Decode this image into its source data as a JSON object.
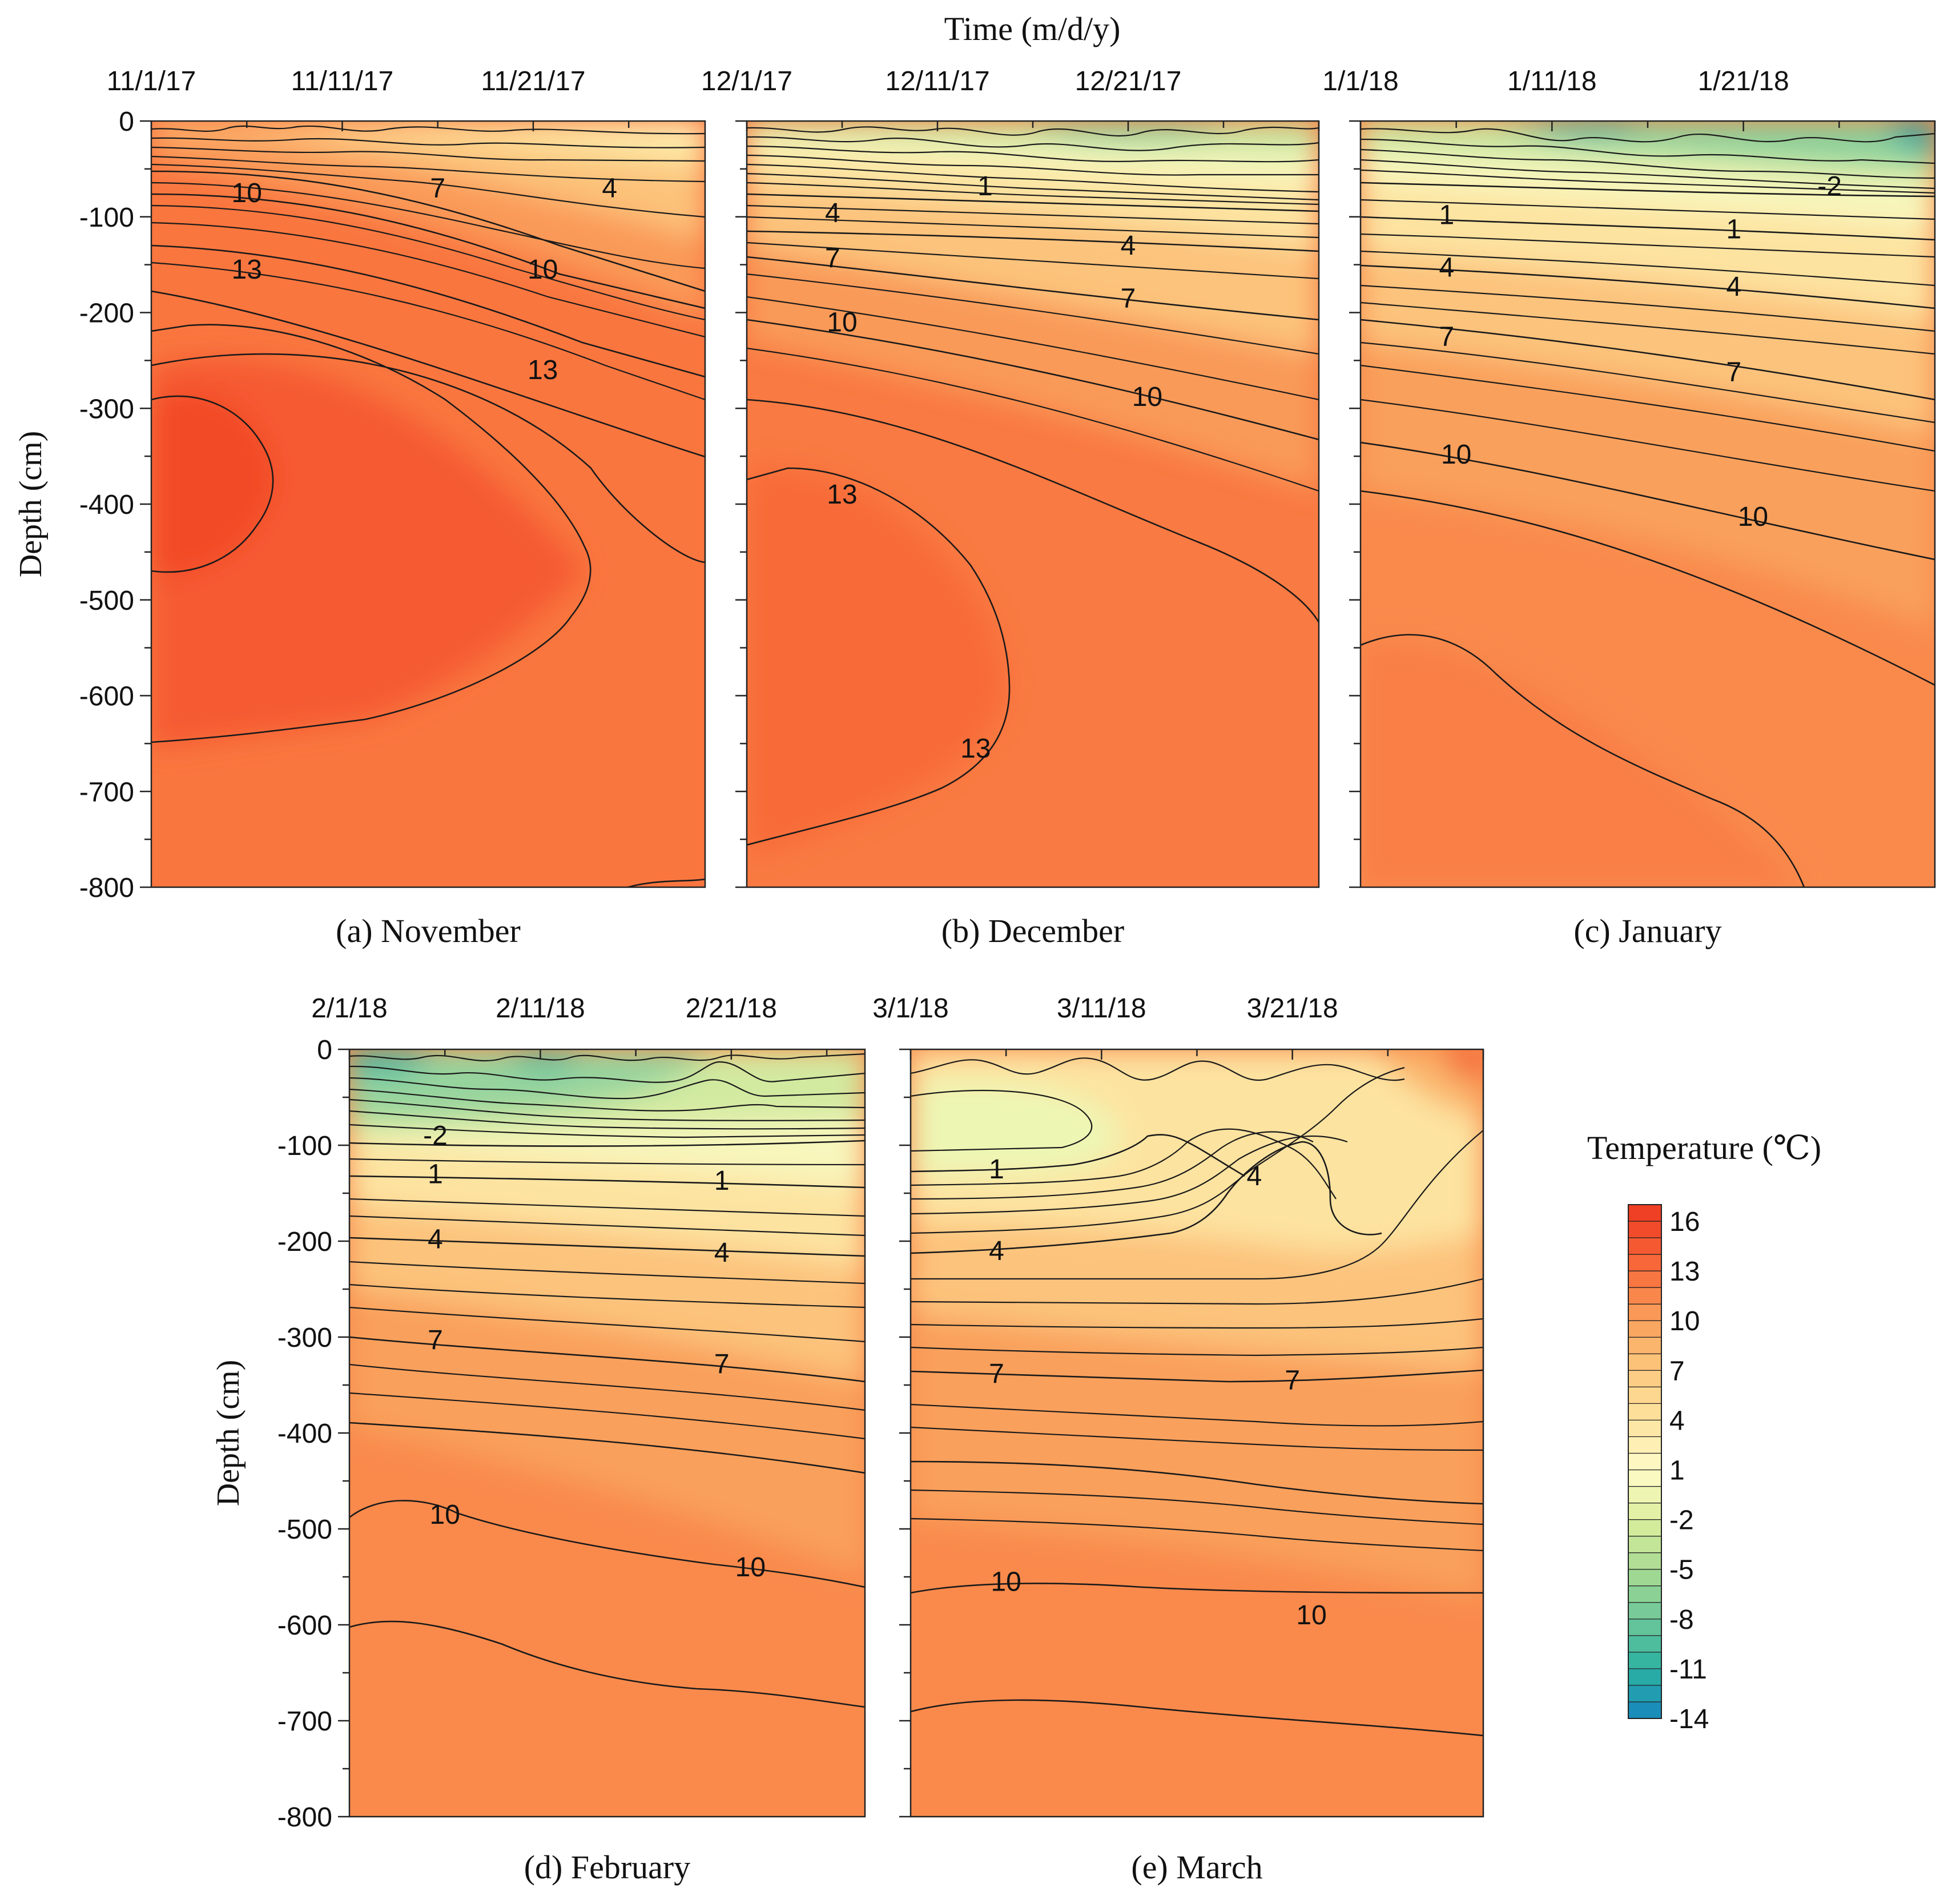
{
  "figure_title": "Time (m/d/y)",
  "chart_data": [
    {
      "id": "a",
      "type": "contour",
      "caption": "(a) November",
      "x_ticks": [
        "11/1/17",
        "11/11/17",
        "11/21/17"
      ],
      "x_range_days": [
        0,
        29
      ],
      "x_tick_days": [
        0,
        10,
        20
      ],
      "ylabel": "Depth (cm)",
      "y_ticks": [
        "0",
        "-100",
        "-200",
        "-300",
        "-400",
        "-500",
        "-600",
        "-700",
        "-800"
      ],
      "ylim": [
        -800,
        0
      ],
      "contour_labels": [
        {
          "text": "10",
          "day": 5,
          "depth": -75
        },
        {
          "text": "7",
          "day": 15,
          "depth": -70
        },
        {
          "text": "4",
          "day": 24,
          "depth": -70
        },
        {
          "text": "13",
          "day": 5,
          "depth": -155
        },
        {
          "text": "10",
          "day": 20.5,
          "depth": -155
        },
        {
          "text": "13",
          "day": 20.5,
          "depth": -260
        }
      ]
    },
    {
      "id": "b",
      "type": "contour",
      "caption": "(b) December",
      "x_ticks": [
        "12/1/17",
        "12/11/17",
        "12/21/17"
      ],
      "x_range_days": [
        0,
        30
      ],
      "x_tick_days": [
        0,
        10,
        20
      ],
      "contour_labels": [
        {
          "text": "1",
          "day": 12.5,
          "depth": -68
        },
        {
          "text": "4",
          "day": 4.5,
          "depth": -96
        },
        {
          "text": "4",
          "day": 20,
          "depth": -130
        },
        {
          "text": "7",
          "day": 4.5,
          "depth": -143
        },
        {
          "text": "7",
          "day": 20,
          "depth": -185
        },
        {
          "text": "10",
          "day": 5,
          "depth": -210
        },
        {
          "text": "10",
          "day": 21,
          "depth": -288
        },
        {
          "text": "13",
          "day": 5,
          "depth": -390
        },
        {
          "text": "13",
          "day": 12,
          "depth": -655
        }
      ]
    },
    {
      "id": "c",
      "type": "contour",
      "caption": "(c) January",
      "x_ticks": [
        "1/1/18",
        "1/11/18",
        "1/21/18"
      ],
      "x_range_days": [
        0,
        30
      ],
      "x_tick_days": [
        0,
        10,
        20
      ],
      "contour_labels": [
        {
          "text": "-2",
          "day": 24.5,
          "depth": -68
        },
        {
          "text": "1",
          "day": 4.5,
          "depth": -98
        },
        {
          "text": "1",
          "day": 19.5,
          "depth": -113
        },
        {
          "text": "4",
          "day": 4.5,
          "depth": -153
        },
        {
          "text": "4",
          "day": 19.5,
          "depth": -173
        },
        {
          "text": "7",
          "day": 4.5,
          "depth": -225
        },
        {
          "text": "7",
          "day": 19.5,
          "depth": -262
        },
        {
          "text": "10",
          "day": 5,
          "depth": -348
        },
        {
          "text": "10",
          "day": 20.5,
          "depth": -413
        }
      ]
    },
    {
      "id": "d",
      "type": "contour",
      "caption": "(d) February",
      "x_ticks": [
        "2/1/18",
        "2/11/18",
        "2/21/18"
      ],
      "x_range_days": [
        0,
        27
      ],
      "x_tick_days": [
        0,
        10,
        20
      ],
      "ylabel": "Depth (cm)",
      "y_ticks": [
        "0",
        "-100",
        "-200",
        "-300",
        "-400",
        "-500",
        "-600",
        "-700",
        "-800"
      ],
      "ylim": [
        -800,
        0
      ],
      "contour_labels": [
        {
          "text": "-2",
          "day": 4.5,
          "depth": -90
        },
        {
          "text": "1",
          "day": 4.5,
          "depth": -130
        },
        {
          "text": "1",
          "day": 19.5,
          "depth": -137
        },
        {
          "text": "4",
          "day": 4.5,
          "depth": -198
        },
        {
          "text": "4",
          "day": 19.5,
          "depth": -212
        },
        {
          "text": "7",
          "day": 4.5,
          "depth": -303
        },
        {
          "text": "7",
          "day": 19.5,
          "depth": -328
        },
        {
          "text": "10",
          "day": 5,
          "depth": -485
        },
        {
          "text": "10",
          "day": 21,
          "depth": -540
        }
      ]
    },
    {
      "id": "e",
      "type": "contour",
      "caption": "(e) March",
      "x_ticks": [
        "3/1/18",
        "3/11/18",
        "3/21/18"
      ],
      "x_range_days": [
        0,
        30
      ],
      "x_tick_days": [
        0,
        10,
        20
      ],
      "contour_labels": [
        {
          "text": "1",
          "day": 4.5,
          "depth": -125
        },
        {
          "text": "4",
          "day": 18,
          "depth": -132
        },
        {
          "text": "4",
          "day": 4.5,
          "depth": -210
        },
        {
          "text": "7",
          "day": 4.5,
          "depth": -338
        },
        {
          "text": "7",
          "day": 20,
          "depth": -345
        },
        {
          "text": "10",
          "day": 5,
          "depth": -555
        },
        {
          "text": "10",
          "day": 21,
          "depth": -590
        }
      ]
    }
  ],
  "legend": {
    "title": "Temperature (℃)",
    "labels": [
      "16",
      "13",
      "10",
      "7",
      "4",
      "1",
      "-2",
      "-5",
      "-8",
      "-11",
      "-14"
    ],
    "min": -14,
    "max": 17,
    "step": 1,
    "colors": {
      "t16": "#f04428",
      "t13": "#f86e3c",
      "t10": "#f9a05c",
      "t7": "#fcc97e",
      "t4": "#fde3a0",
      "t1": "#fffbc8",
      "tm2": "#dcef9e",
      "tm5": "#a8db92",
      "tm8": "#6ec69a",
      "tm11": "#2bb3a2",
      "tm14": "#1885bd"
    }
  }
}
